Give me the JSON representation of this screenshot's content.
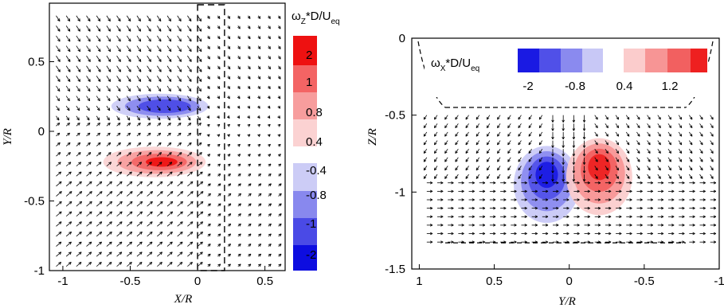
{
  "chart_data": [
    {
      "type": "contour",
      "panel": "left",
      "xlabel": "X/R",
      "ylabel": "Y/R",
      "xlim": [
        -1.1,
        0.65
      ],
      "ylim": [
        -1.0,
        0.92
      ],
      "xticks": [
        -1,
        -0.5,
        0,
        0.5
      ],
      "xtick_labels": [
        "-1",
        "-0.5",
        "0",
        "0.5"
      ],
      "yticks": [
        -1,
        -0.5,
        0,
        0.5
      ],
      "ytick_labels": [
        "-1",
        "-0.5",
        "0",
        "0.5"
      ],
      "colorbar": {
        "title_main": "ω",
        "title_sub": "Z",
        "title_rest": "*D/U",
        "title_sub2": "eq",
        "positive_labels": [
          "2",
          "1",
          "0.8",
          "0.4"
        ],
        "negative_labels": [
          "-0.4",
          "-0.8",
          "-1",
          "-2"
        ],
        "positive_colors": [
          "#ee1111",
          "#f36464",
          "#f79d9d",
          "#fbd2d2"
        ],
        "negative_colors": [
          "#ccccf6",
          "#8888ee",
          "#4a4ae6",
          "#0d0de0"
        ]
      },
      "contours": [
        {
          "sign": "negative",
          "level": 3,
          "center": [
            -0.28,
            0.18
          ],
          "spread": [
            0.36,
            0.09
          ]
        },
        {
          "sign": "positive",
          "level": 4,
          "center": [
            -0.32,
            -0.22
          ],
          "spread": [
            0.38,
            0.11
          ]
        }
      ],
      "annotations": [
        {
          "type": "dashed_box",
          "x": [
            0.0,
            0.2
          ],
          "y": [
            -1.0,
            0.95
          ]
        }
      ]
    },
    {
      "type": "contour",
      "panel": "right",
      "xlabel": "Y/R",
      "ylabel": "Z/R",
      "xlim": [
        1.05,
        -1.0
      ],
      "ylim": [
        -1.5,
        0.0
      ],
      "xticks": [
        1,
        0.5,
        0,
        -0.5,
        -1
      ],
      "xtick_labels": [
        "1",
        "0.5",
        "0",
        "-0.5",
        "-1"
      ],
      "yticks": [
        0,
        -0.5,
        -1,
        -1.5
      ],
      "ytick_labels": [
        "0",
        "-0.5",
        "-1",
        "-1.5"
      ],
      "colorbar": {
        "title_main": "ω",
        "title_sub": "X",
        "title_rest": "*D/U",
        "title_sub2": "eq",
        "labels": [
          "-2",
          "-0.8",
          "0.4",
          "1.2"
        ],
        "negative_colors": [
          "#1a1ae3",
          "#5050e8",
          "#8a8aef",
          "#c8c8f6"
        ],
        "positive_colors": [
          "#fbcccc",
          "#f79595",
          "#f26060",
          "#ee2020"
        ]
      },
      "contours": [
        {
          "sign": "negative",
          "level": 4,
          "center": [
            0.15,
            -0.95
          ],
          "spread": [
            0.22,
            0.2
          ]
        },
        {
          "sign": "positive",
          "level": 4,
          "center": [
            -0.2,
            -0.9
          ],
          "spread": [
            0.22,
            0.2
          ]
        }
      ]
    }
  ]
}
